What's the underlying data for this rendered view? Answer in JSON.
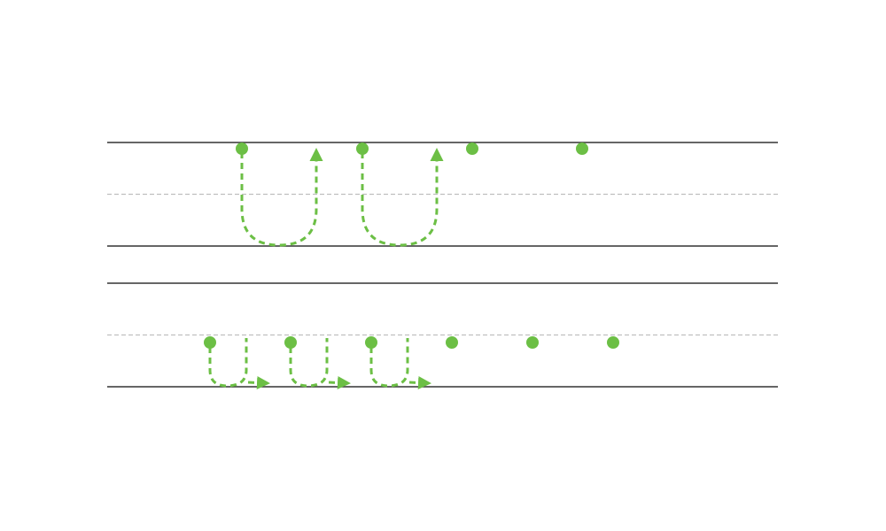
{
  "colors": {
    "accent": "#6cbf45",
    "line": "#333333",
    "midline": "#bfbfbf",
    "background": "#ffffff"
  },
  "diagram": {
    "rows": [
      {
        "id": "top",
        "dots": 4,
        "u_turn_arrows": 2,
        "arrow_direction": "up"
      },
      {
        "id": "bottom",
        "dots": 6,
        "u_turn_arrows": 3,
        "arrow_direction": "right"
      }
    ]
  }
}
